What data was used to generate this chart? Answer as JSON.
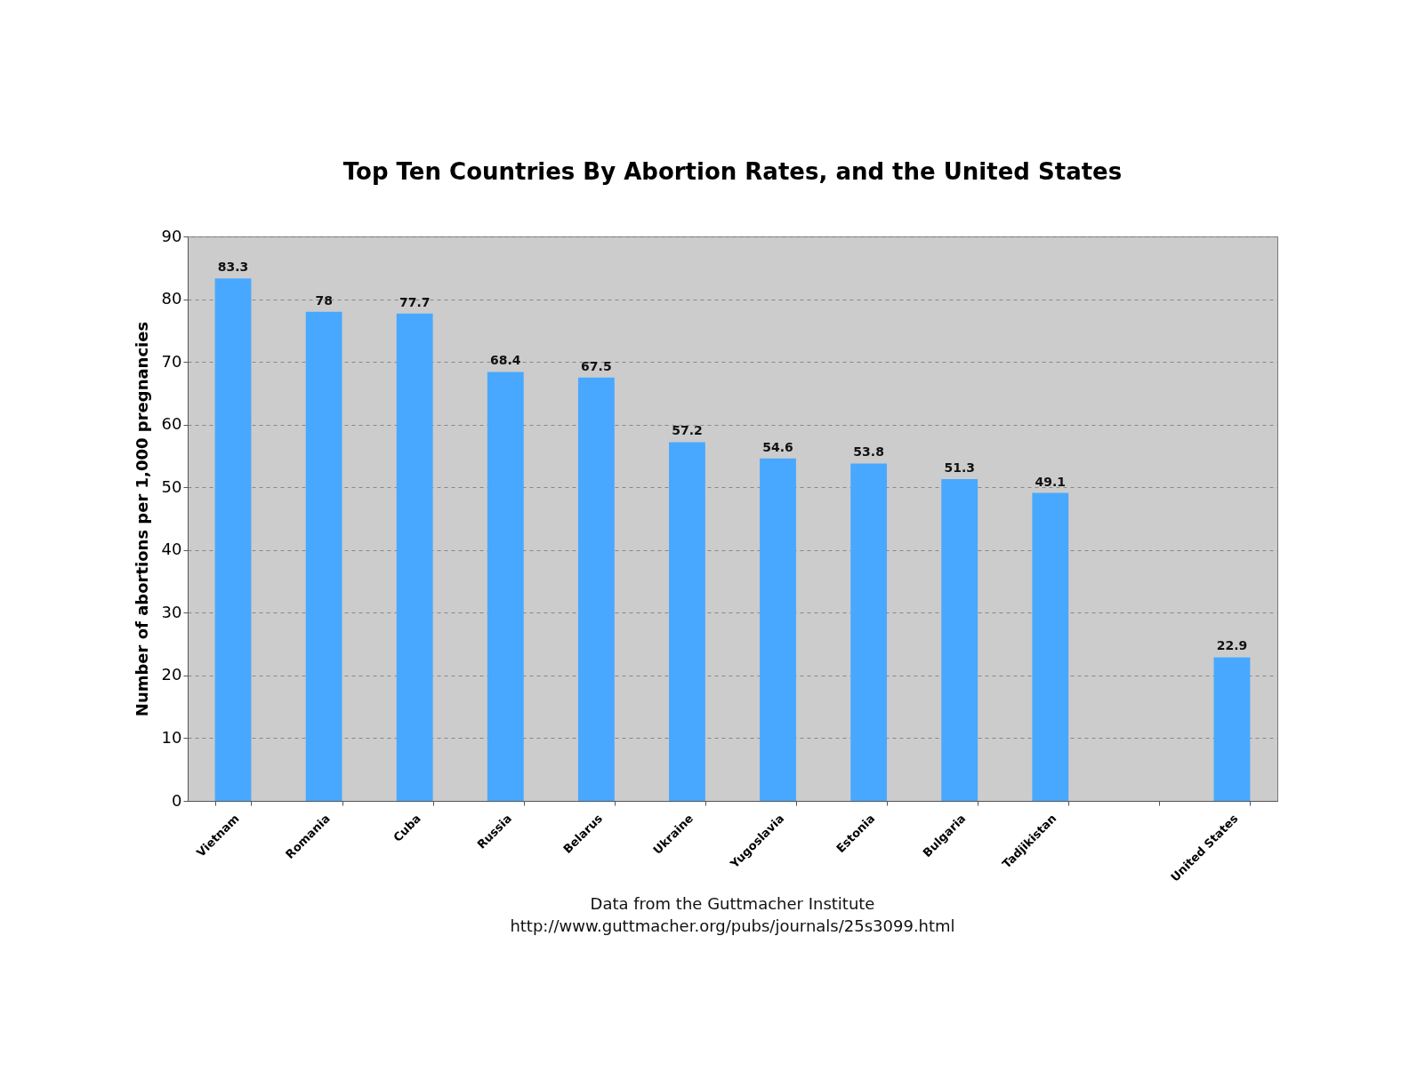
{
  "chart_data": {
    "type": "bar",
    "title": "Top Ten Countries By Abortion Rates, and the United States",
    "ylabel": "Number of abortions per 1,000 pregnancies",
    "categories": [
      "Vietnam",
      "Romania",
      "Cuba",
      "Russia",
      "Belarus",
      "Ukraine",
      "Yugoslavia",
      "Estonia",
      "Bulgaria",
      "Tadjikistan",
      null,
      "United States"
    ],
    "values": [
      83.3,
      78,
      77.7,
      68.4,
      67.5,
      57.2,
      54.6,
      53.8,
      51.3,
      49.1,
      null,
      22.9
    ],
    "color": "#48a8ff",
    "ylim": [
      0,
      90
    ],
    "yticks": [
      0,
      10,
      20,
      30,
      40,
      50,
      60,
      70,
      80,
      90
    ],
    "grid": "y",
    "data_labels": true,
    "annotations": [
      "Data from the Guttmacher Institute",
      "http://www.guttmacher.org/pubs/journals/25s3099.html"
    ]
  }
}
